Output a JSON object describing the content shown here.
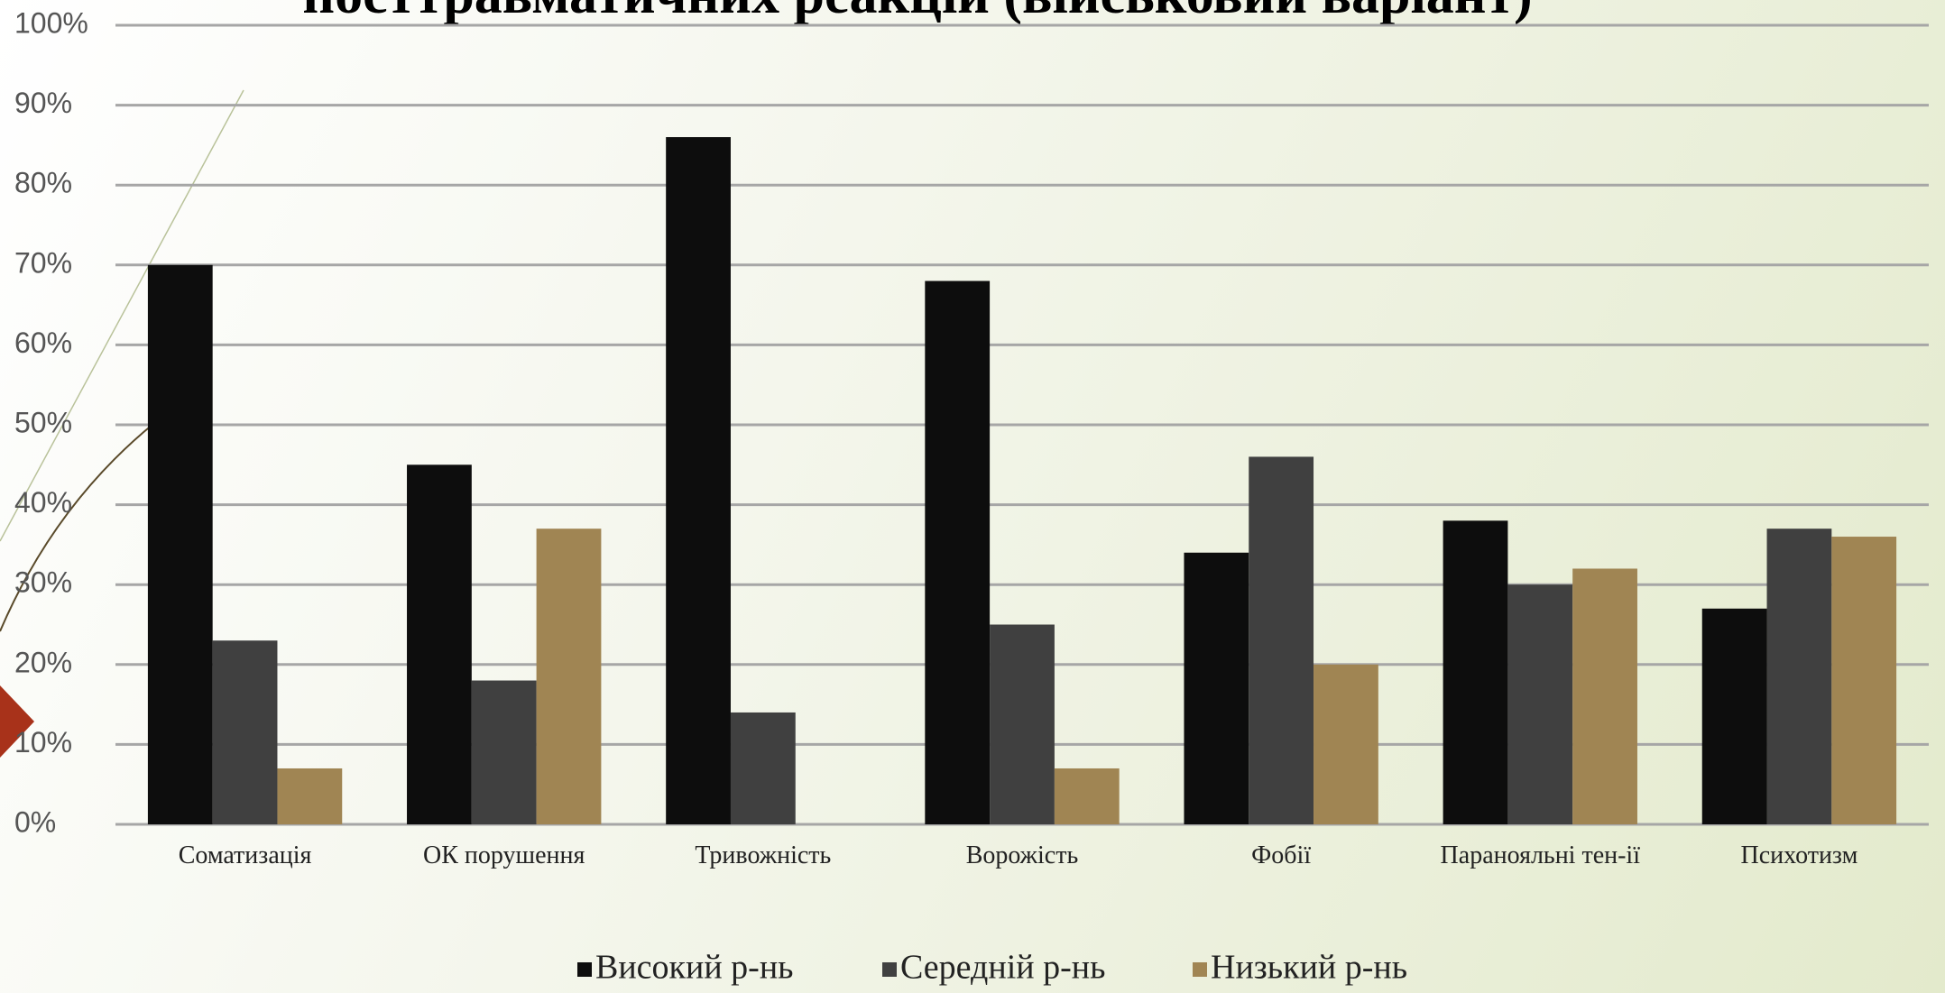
{
  "chart_data": {
    "type": "bar",
    "title": "посттравматичних реакцій (військовий варіант)",
    "categories": [
      "Соматизація",
      "ОК порушення",
      "Тривожність",
      "Ворожість",
      "Фобії",
      "Паранояльні тен-ії",
      "Психотизм"
    ],
    "series": [
      {
        "name": "Високий р-нь",
        "color": "#0d0d0d",
        "values": [
          70,
          45,
          86,
          68,
          34,
          38,
          27
        ]
      },
      {
        "name": "Середній р-нь",
        "color": "#404040",
        "values": [
          23,
          18,
          14,
          25,
          46,
          30,
          37
        ]
      },
      {
        "name": "Низький р-нь",
        "color": "#a08553",
        "values": [
          7,
          37,
          0,
          7,
          20,
          32,
          36
        ]
      }
    ],
    "ylim": [
      0,
      100
    ],
    "yticks": [
      {
        "value": 0,
        "label": "0%"
      },
      {
        "value": 10,
        "label": "10%"
      },
      {
        "value": 20,
        "label": "20%"
      },
      {
        "value": 30,
        "label": "30%"
      },
      {
        "value": 40,
        "label": "40%"
      },
      {
        "value": 50,
        "label": "50%"
      },
      {
        "value": 60,
        "label": "60%"
      },
      {
        "value": 70,
        "label": "70%"
      },
      {
        "value": 80,
        "label": "80%"
      },
      {
        "value": 90,
        "label": "90%"
      },
      {
        "value": 100,
        "label": "100%"
      }
    ],
    "grid": true,
    "legend": "bottom"
  }
}
